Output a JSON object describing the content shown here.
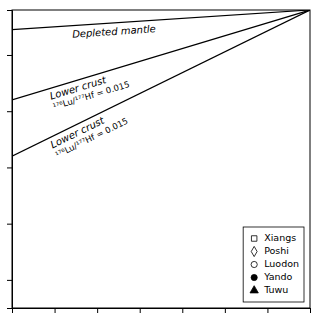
{
  "chart_data": {
    "type": "line",
    "xlim": [
      300,
      1000
    ],
    "ylim": [
      -35,
      18
    ],
    "xticks": [
      300,
      400,
      500,
      600,
      700,
      800,
      900,
      1000
    ],
    "yticks": [
      -30,
      -20,
      -10,
      0,
      10
    ],
    "tick_labels": false,
    "grid": false,
    "legend": "lower right",
    "annotations": [
      "Depleted mantle",
      "Lower crust",
      "¹⁷⁶Lu/¹⁷⁷Hf = 0.015",
      "Lower crust",
      "¹⁷⁶Lu/¹⁷⁷Hf = 0.015"
    ],
    "series": [
      {
        "type": "line",
        "color": "black",
        "x": [
          300,
          1000
        ],
        "values": [
          14.5,
          18
        ]
      },
      {
        "type": "line",
        "color": "black",
        "x": [
          300,
          1000
        ],
        "values": [
          2,
          18
        ]
      },
      {
        "type": "line",
        "color": "black",
        "x": [
          300,
          1000
        ],
        "values": [
          -8,
          18
        ]
      },
      {
        "name": "Xiangs",
        "type": "scatter",
        "marker": "square-open",
        "x": [],
        "values": []
      },
      {
        "name": "Poshi",
        "type": "scatter",
        "marker": "diamond-open",
        "x": [],
        "values": []
      },
      {
        "name": "Luodon",
        "type": "scatter",
        "marker": "circle-open",
        "x": [],
        "values": []
      },
      {
        "name": "Yando",
        "type": "scatter",
        "marker": "circle",
        "x": [],
        "values": []
      },
      {
        "name": "Tuwu",
        "type": "scatter",
        "marker": "triangle-up",
        "x": [],
        "values": []
      }
    ]
  }
}
